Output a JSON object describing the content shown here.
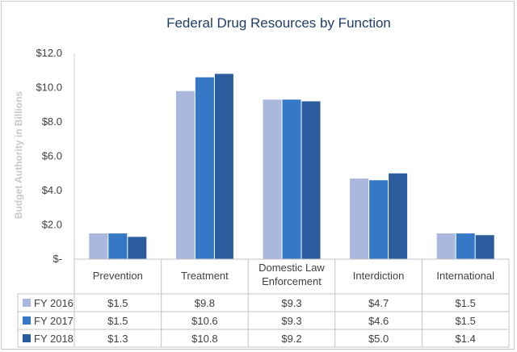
{
  "chart_data": {
    "type": "bar",
    "title": "Federal Drug Resources by Function",
    "ylabel": "Budget Authority in Billions",
    "ylim": [
      0,
      12
    ],
    "yticks": [
      "$-",
      "$2.0",
      "$4.0",
      "$6.0",
      "$8.0",
      "$10.0",
      "$12.0"
    ],
    "grid": false,
    "legend": "data-table",
    "categories": [
      [
        "Prevention"
      ],
      [
        "Treatment"
      ],
      [
        "Domestic Law",
        "Enforcement"
      ],
      [
        "Interdiction"
      ],
      [
        "International"
      ]
    ],
    "series": [
      {
        "name": "FY 2016",
        "color": "#a9b8dc",
        "values": [
          1.5,
          9.8,
          9.3,
          4.7,
          1.5
        ],
        "labels": [
          "$1.5",
          "$9.8",
          "$9.3",
          "$4.7",
          "$1.5"
        ]
      },
      {
        "name": "FY 2017",
        "color": "#3478c6",
        "values": [
          1.5,
          10.6,
          9.3,
          4.6,
          1.5
        ],
        "labels": [
          "$1.5",
          "$10.6",
          "$9.3",
          "$4.6",
          "$1.5"
        ]
      },
      {
        "name": "FY 2018",
        "color": "#2a5c9e",
        "values": [
          1.3,
          10.8,
          9.2,
          5.0,
          1.4
        ],
        "labels": [
          "$1.3",
          "$10.8",
          "$9.2",
          "$5.0",
          "$1.4"
        ]
      }
    ]
  }
}
